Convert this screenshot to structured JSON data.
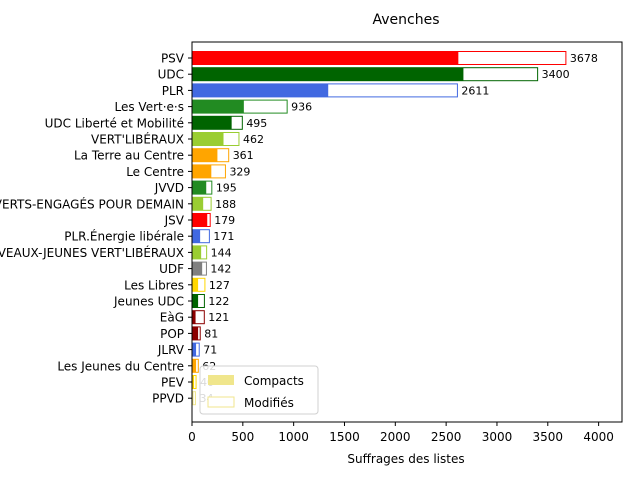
{
  "chart_data": {
    "type": "bar",
    "orientation": "horizontal",
    "title": "Avenches",
    "xlabel": "Suffrages des listes",
    "ylabel": "",
    "xlim": [
      0,
      4230
    ],
    "xticks": [
      0,
      500,
      1000,
      1500,
      2000,
      2500,
      3000,
      3500,
      4000
    ],
    "grid": false,
    "legend_position": "lower-left",
    "categories": [
      "PSV",
      "UDC",
      "PLR",
      "Les Vert·e·s",
      "UDC Liberté et Mobilité",
      "VERT'LIBÉRAUX",
      "La Terre au Centre",
      "Le Centre",
      "JVVD",
      "LES VERTS-ENGAGÉS POUR DEMAIN",
      "JSV",
      "PLR.Énergie libérale",
      "LES NOUVEAUX-JEUNES VERT'LIBÉRAUX",
      "UDF",
      "Les Libres",
      "Jeunes UDC",
      "EàG",
      "POP",
      "JLRV",
      "Les Jeunes du Centre",
      "PEV",
      "PPVD"
    ],
    "colors": [
      "#ff0000",
      "#006400",
      "#4169e1",
      "#228b22",
      "#006400",
      "#9acd32",
      "#ffa500",
      "#ffa500",
      "#228b22",
      "#9acd32",
      "#ff0000",
      "#4169e1",
      "#9acd32",
      "#808080",
      "#ffd700",
      "#006400",
      "#8b0000",
      "#8b0000",
      "#4169e1",
      "#ffa500",
      "#ffd700",
      "#f0e68c"
    ],
    "series": [
      {
        "name": "Compacts",
        "values": [
          2620,
          2670,
          1340,
          510,
          390,
          310,
          250,
          190,
          140,
          110,
          150,
          80,
          90,
          100,
          60,
          60,
          35,
          60,
          40,
          40,
          20,
          15
        ]
      },
      {
        "name": "Modifiés",
        "values": [
          3678,
          3400,
          2611,
          936,
          495,
          462,
          361,
          329,
          195,
          188,
          179,
          171,
          144,
          142,
          127,
          122,
          121,
          81,
          71,
          62,
          40,
          34
        ]
      }
    ],
    "data_labels": [
      "3678",
      "3400",
      "2611",
      "936",
      "495",
      "462",
      "361",
      "329",
      "195",
      "188",
      "179",
      "171",
      "144",
      "142",
      "127",
      "122",
      "121",
      "81",
      "71",
      "62",
      "40",
      "34"
    ],
    "legend": {
      "compact_color": "#f0e68c",
      "modified_edge": "#f0e68c"
    }
  }
}
